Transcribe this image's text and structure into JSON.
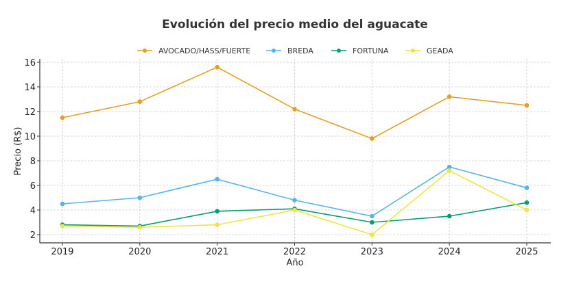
{
  "chart_data": {
    "type": "line",
    "title": "Evolución del precio medio del aguacate",
    "xlabel": "Año",
    "ylabel": "Precio (R$)",
    "x": [
      2019,
      2020,
      2021,
      2022,
      2023,
      2024,
      2025
    ],
    "x_ticks": [
      "2019",
      "2020",
      "2021",
      "2022",
      "2023",
      "2024",
      "2025"
    ],
    "y_ticks": [
      "2",
      "4",
      "6",
      "8",
      "10",
      "12",
      "14",
      "16"
    ],
    "ylim": [
      1.35,
      16.3
    ],
    "grid": true,
    "legend_position": "top",
    "series": [
      {
        "name": "AVOCADO/HASS/FUERTE",
        "color": "#E69F25",
        "values": [
          11.5,
          12.8,
          15.6,
          12.2,
          9.8,
          13.2,
          12.5
        ]
      },
      {
        "name": "BREDA",
        "color": "#56B4E9",
        "values": [
          4.5,
          5.0,
          6.5,
          4.8,
          3.5,
          7.5,
          5.8
        ]
      },
      {
        "name": "FORTUNA",
        "color": "#009E73",
        "values": [
          2.8,
          2.7,
          3.9,
          4.1,
          3.0,
          3.5,
          4.6
        ]
      },
      {
        "name": "GEADA",
        "color": "#F0E442",
        "values": [
          2.7,
          2.6,
          2.8,
          4.0,
          2.0,
          7.2,
          4.0
        ]
      }
    ]
  }
}
